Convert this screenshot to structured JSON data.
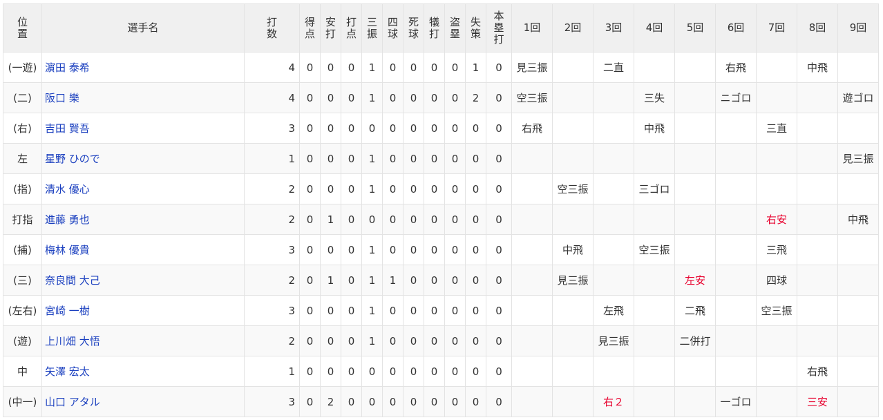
{
  "headers": {
    "position": "位置",
    "player": "選手名",
    "stats": [
      "打数",
      "得点",
      "安打",
      "打点",
      "三振",
      "四球",
      "死球",
      "犠打",
      "盗塁",
      "失策",
      "本塁打"
    ],
    "innings": [
      "1回",
      "2回",
      "3回",
      "4回",
      "5回",
      "6回",
      "7回",
      "8回",
      "9回"
    ]
  },
  "colors": {
    "link": "#1a3fbf",
    "hit": "#e8002d",
    "header_bg": "#f0f0f0"
  },
  "rows": [
    {
      "pos": "(一遊)",
      "name": "濵田 泰希",
      "stats": [
        4,
        0,
        0,
        0,
        1,
        0,
        0,
        0,
        0,
        1,
        0
      ],
      "innings": [
        {
          "t": "見三振"
        },
        {
          "t": ""
        },
        {
          "t": "二直"
        },
        {
          "t": ""
        },
        {
          "t": ""
        },
        {
          "t": "右飛"
        },
        {
          "t": ""
        },
        {
          "t": "中飛"
        },
        {
          "t": ""
        }
      ]
    },
    {
      "pos": "(二)",
      "name": "阪口 樂",
      "stats": [
        4,
        0,
        0,
        0,
        1,
        0,
        0,
        0,
        0,
        2,
        0
      ],
      "innings": [
        {
          "t": "空三振"
        },
        {
          "t": ""
        },
        {
          "t": ""
        },
        {
          "t": "三失"
        },
        {
          "t": ""
        },
        {
          "t": "ニゴロ"
        },
        {
          "t": ""
        },
        {
          "t": ""
        },
        {
          "t": "遊ゴロ"
        }
      ]
    },
    {
      "pos": "(右)",
      "name": "吉田 賢吾",
      "stats": [
        3,
        0,
        0,
        0,
        0,
        0,
        0,
        0,
        0,
        0,
        0
      ],
      "innings": [
        {
          "t": "右飛"
        },
        {
          "t": ""
        },
        {
          "t": ""
        },
        {
          "t": "中飛"
        },
        {
          "t": ""
        },
        {
          "t": ""
        },
        {
          "t": "三直"
        },
        {
          "t": ""
        },
        {
          "t": ""
        }
      ]
    },
    {
      "pos": "左",
      "name": "星野 ひので",
      "stats": [
        1,
        0,
        0,
        0,
        1,
        0,
        0,
        0,
        0,
        0,
        0
      ],
      "innings": [
        {
          "t": ""
        },
        {
          "t": ""
        },
        {
          "t": ""
        },
        {
          "t": ""
        },
        {
          "t": ""
        },
        {
          "t": ""
        },
        {
          "t": ""
        },
        {
          "t": ""
        },
        {
          "t": "見三振"
        }
      ]
    },
    {
      "pos": "(指)",
      "name": "清水 優心",
      "stats": [
        2,
        0,
        0,
        0,
        1,
        0,
        0,
        0,
        0,
        0,
        0
      ],
      "innings": [
        {
          "t": ""
        },
        {
          "t": "空三振"
        },
        {
          "t": ""
        },
        {
          "t": "三ゴロ"
        },
        {
          "t": ""
        },
        {
          "t": ""
        },
        {
          "t": ""
        },
        {
          "t": ""
        },
        {
          "t": ""
        }
      ]
    },
    {
      "pos": "打指",
      "name": "進藤 勇也",
      "stats": [
        2,
        0,
        1,
        0,
        0,
        0,
        0,
        0,
        0,
        0,
        0
      ],
      "innings": [
        {
          "t": ""
        },
        {
          "t": ""
        },
        {
          "t": ""
        },
        {
          "t": ""
        },
        {
          "t": ""
        },
        {
          "t": ""
        },
        {
          "t": "右安",
          "hit": true
        },
        {
          "t": ""
        },
        {
          "t": "中飛"
        }
      ]
    },
    {
      "pos": "(捕)",
      "name": "梅林 優貴",
      "stats": [
        3,
        0,
        0,
        0,
        1,
        0,
        0,
        0,
        0,
        0,
        0
      ],
      "innings": [
        {
          "t": ""
        },
        {
          "t": "中飛"
        },
        {
          "t": ""
        },
        {
          "t": "空三振"
        },
        {
          "t": ""
        },
        {
          "t": ""
        },
        {
          "t": "三飛"
        },
        {
          "t": ""
        },
        {
          "t": ""
        }
      ]
    },
    {
      "pos": "(三)",
      "name": "奈良間 大己",
      "stats": [
        2,
        0,
        1,
        0,
        1,
        1,
        0,
        0,
        0,
        0,
        0
      ],
      "innings": [
        {
          "t": ""
        },
        {
          "t": "見三振"
        },
        {
          "t": ""
        },
        {
          "t": ""
        },
        {
          "t": "左安",
          "hit": true
        },
        {
          "t": ""
        },
        {
          "t": "四球"
        },
        {
          "t": ""
        },
        {
          "t": ""
        }
      ]
    },
    {
      "pos": "(左右)",
      "name": "宮崎 一樹",
      "stats": [
        3,
        0,
        0,
        0,
        1,
        0,
        0,
        0,
        0,
        0,
        0
      ],
      "innings": [
        {
          "t": ""
        },
        {
          "t": ""
        },
        {
          "t": "左飛"
        },
        {
          "t": ""
        },
        {
          "t": "二飛"
        },
        {
          "t": ""
        },
        {
          "t": "空三振"
        },
        {
          "t": ""
        },
        {
          "t": ""
        }
      ]
    },
    {
      "pos": "(遊)",
      "name": "上川畑 大悟",
      "stats": [
        2,
        0,
        0,
        0,
        1,
        0,
        0,
        0,
        0,
        0,
        0
      ],
      "innings": [
        {
          "t": ""
        },
        {
          "t": ""
        },
        {
          "t": "見三振"
        },
        {
          "t": ""
        },
        {
          "t": "二併打"
        },
        {
          "t": ""
        },
        {
          "t": ""
        },
        {
          "t": ""
        },
        {
          "t": ""
        }
      ]
    },
    {
      "pos": "中",
      "name": "矢澤 宏太",
      "stats": [
        1,
        0,
        0,
        0,
        0,
        0,
        0,
        0,
        0,
        0,
        0
      ],
      "innings": [
        {
          "t": ""
        },
        {
          "t": ""
        },
        {
          "t": ""
        },
        {
          "t": ""
        },
        {
          "t": ""
        },
        {
          "t": ""
        },
        {
          "t": ""
        },
        {
          "t": "右飛"
        },
        {
          "t": ""
        }
      ]
    },
    {
      "pos": "(中一)",
      "name": "山口 アタル",
      "stats": [
        3,
        0,
        2,
        0,
        0,
        0,
        0,
        0,
        0,
        0,
        0
      ],
      "innings": [
        {
          "t": ""
        },
        {
          "t": ""
        },
        {
          "t": "右２",
          "hit": true
        },
        {
          "t": ""
        },
        {
          "t": ""
        },
        {
          "t": "一ゴロ"
        },
        {
          "t": ""
        },
        {
          "t": "三安",
          "hit": true
        },
        {
          "t": ""
        }
      ]
    }
  ]
}
